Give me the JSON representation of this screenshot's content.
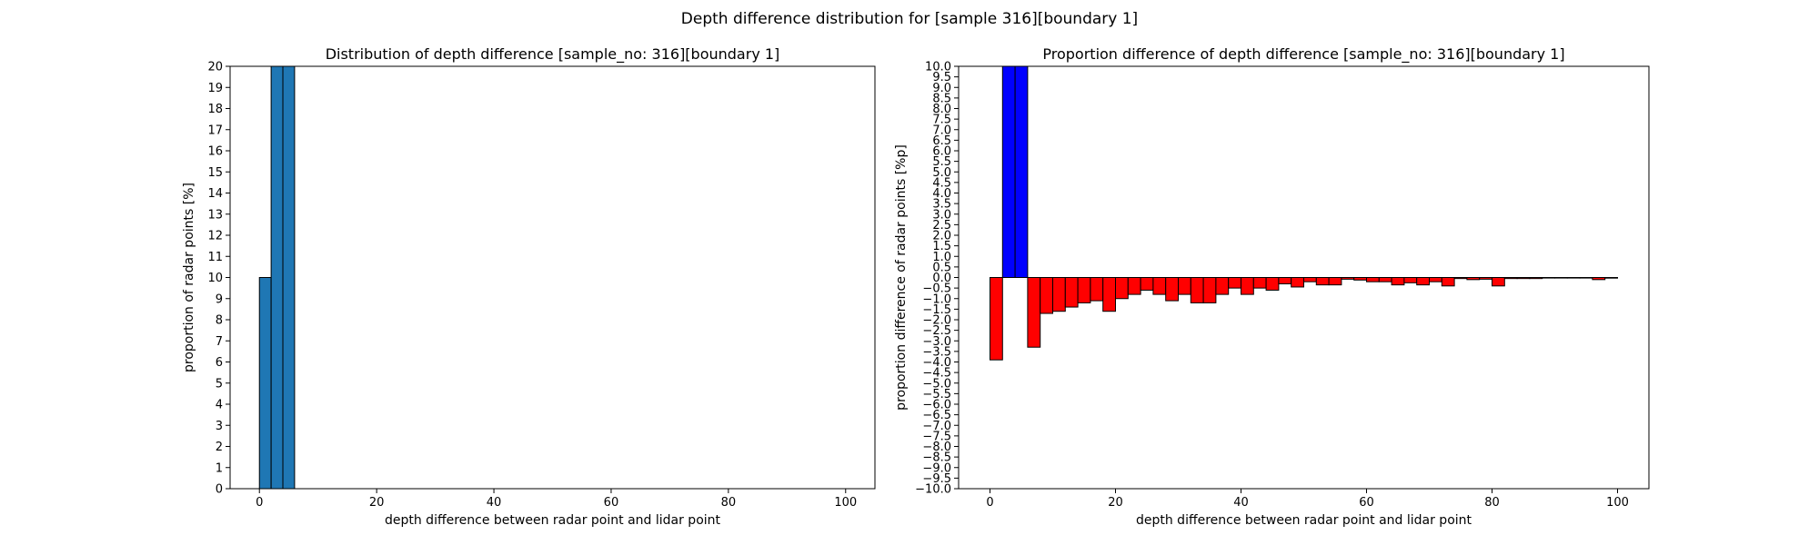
{
  "figure": {
    "title": "Depth difference distribution for [sample 316][boundary 1]"
  },
  "chart_data": [
    {
      "type": "bar",
      "title": "Distribution of depth difference [sample_no: 316][boundary 1]",
      "xlabel": "depth difference between radar point and lidar point",
      "ylabel": "proportion of radar points [%]",
      "xlim": [
        -5,
        105
      ],
      "ylim": [
        0,
        20
      ],
      "xticks": [
        0,
        20,
        40,
        60,
        80,
        100
      ],
      "yticks": [
        0,
        1,
        2,
        3,
        4,
        5,
        6,
        7,
        8,
        9,
        10,
        11,
        12,
        13,
        14,
        15,
        16,
        17,
        18,
        19,
        20
      ],
      "bin_width": 2,
      "bar_color": "#1f77b4",
      "edge_color": "#000000",
      "bars": [
        {
          "x": 0,
          "y": 10
        },
        {
          "x": 2,
          "y": 20
        },
        {
          "x": 4,
          "y": 20
        }
      ]
    },
    {
      "type": "bar",
      "title": "Proportion difference of depth difference [sample_no: 316][boundary 1]",
      "xlabel": "depth difference between radar point and lidar point",
      "ylabel": "proportion difference of radar points [%p]",
      "xlim": [
        -5,
        105
      ],
      "ylim": [
        -10,
        10
      ],
      "xticks": [
        0,
        20,
        40,
        60,
        80,
        100
      ],
      "yticks": [
        -10.0,
        -9.5,
        -9.0,
        -8.5,
        -8.0,
        -7.5,
        -7.0,
        -6.5,
        -6.0,
        -5.5,
        -5.0,
        -4.5,
        -4.0,
        -3.5,
        -3.0,
        -2.5,
        -2.0,
        -1.5,
        -1.0,
        -0.5,
        0.0,
        0.5,
        1.0,
        1.5,
        2.0,
        2.5,
        3.0,
        3.5,
        4.0,
        4.5,
        5.0,
        5.5,
        6.0,
        6.5,
        7.0,
        7.5,
        8.0,
        8.5,
        9.0,
        9.5,
        10.0
      ],
      "bin_width": 2,
      "positive_color": "#0000ff",
      "negative_color": "#ff0000",
      "edge_color": "#000000",
      "bars": [
        {
          "x": 0,
          "y": -3.9
        },
        {
          "x": 2,
          "y": 10
        },
        {
          "x": 4,
          "y": 10
        },
        {
          "x": 6,
          "y": -3.3
        },
        {
          "x": 8,
          "y": -1.7
        },
        {
          "x": 10,
          "y": -1.6
        },
        {
          "x": 12,
          "y": -1.4
        },
        {
          "x": 14,
          "y": -1.2
        },
        {
          "x": 16,
          "y": -1.1
        },
        {
          "x": 18,
          "y": -1.6
        },
        {
          "x": 20,
          "y": -1.0
        },
        {
          "x": 22,
          "y": -0.8
        },
        {
          "x": 24,
          "y": -0.6
        },
        {
          "x": 26,
          "y": -0.8
        },
        {
          "x": 28,
          "y": -1.1
        },
        {
          "x": 30,
          "y": -0.8
        },
        {
          "x": 32,
          "y": -1.2
        },
        {
          "x": 34,
          "y": -1.2
        },
        {
          "x": 36,
          "y": -0.8
        },
        {
          "x": 38,
          "y": -0.5
        },
        {
          "x": 40,
          "y": -0.8
        },
        {
          "x": 42,
          "y": -0.5
        },
        {
          "x": 44,
          "y": -0.6
        },
        {
          "x": 46,
          "y": -0.3
        },
        {
          "x": 48,
          "y": -0.45
        },
        {
          "x": 50,
          "y": -0.2
        },
        {
          "x": 52,
          "y": -0.35
        },
        {
          "x": 54,
          "y": -0.35
        },
        {
          "x": 56,
          "y": -0.08
        },
        {
          "x": 58,
          "y": -0.12
        },
        {
          "x": 60,
          "y": -0.2
        },
        {
          "x": 62,
          "y": -0.2
        },
        {
          "x": 64,
          "y": -0.35
        },
        {
          "x": 66,
          "y": -0.25
        },
        {
          "x": 68,
          "y": -0.35
        },
        {
          "x": 70,
          "y": -0.2
        },
        {
          "x": 72,
          "y": -0.4
        },
        {
          "x": 74,
          "y": -0.05
        },
        {
          "x": 76,
          "y": -0.1
        },
        {
          "x": 78,
          "y": -0.08
        },
        {
          "x": 80,
          "y": -0.4
        },
        {
          "x": 82,
          "y": -0.05
        },
        {
          "x": 84,
          "y": -0.05
        },
        {
          "x": 86,
          "y": -0.05
        },
        {
          "x": 88,
          "y": -0.02
        },
        {
          "x": 90,
          "y": -0.02
        },
        {
          "x": 92,
          "y": -0.02
        },
        {
          "x": 94,
          "y": -0.02
        },
        {
          "x": 96,
          "y": -0.1
        },
        {
          "x": 98,
          "y": -0.03
        }
      ]
    }
  ]
}
